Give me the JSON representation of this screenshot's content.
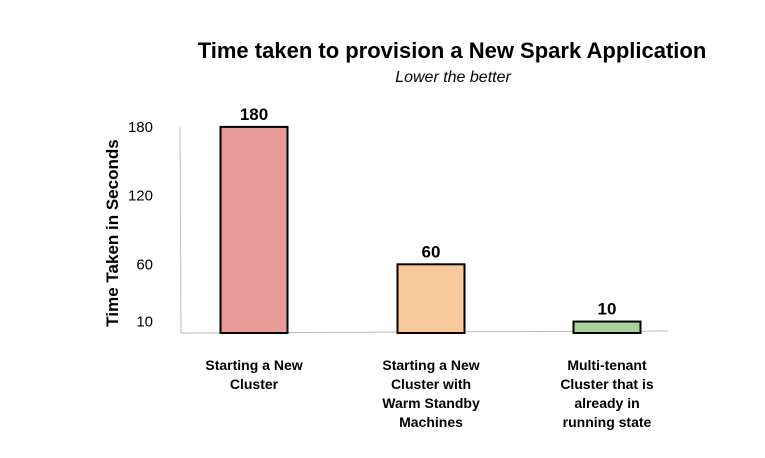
{
  "chart_data": {
    "type": "bar",
    "title": "Time taken to provision a New Spark Application",
    "subtitle": "Lower the better",
    "xlabel": "",
    "ylabel": "Time Taken in Seconds",
    "yticks": [
      10,
      60,
      120,
      180
    ],
    "categories": [
      [
        "Starting a New",
        "Cluster"
      ],
      [
        "Starting a New",
        "Cluster with",
        "Warm Standby",
        "Machines"
      ],
      [
        "Multi-tenant",
        "Cluster that is",
        "already in",
        "running state"
      ]
    ],
    "values": [
      180,
      60,
      10
    ],
    "value_labels": [
      "180",
      "60",
      "10"
    ],
    "colors": [
      "#e89a98",
      "#f8c99a",
      "#a9d39a"
    ],
    "grid": false,
    "legend": "none"
  }
}
